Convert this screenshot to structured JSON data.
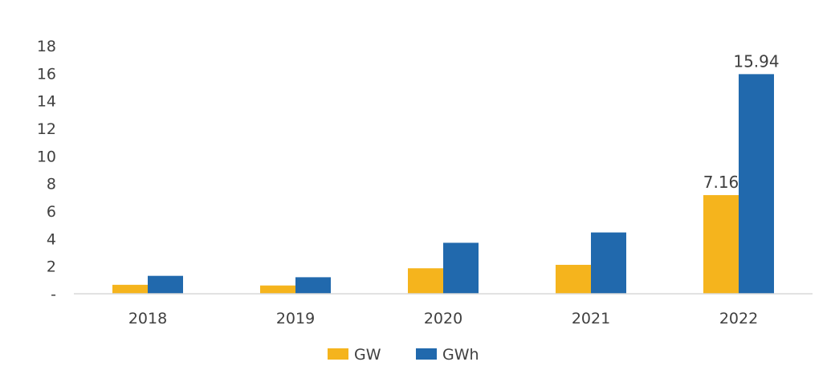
{
  "chart_data": {
    "type": "bar",
    "title": "",
    "xlabel": "",
    "ylabel": "",
    "categories": [
      "2018",
      "2019",
      "2020",
      "2021",
      "2022"
    ],
    "series": [
      {
        "name": "GW",
        "color": "#F5B41D",
        "values": [
          0.65,
          0.6,
          1.85,
          2.1,
          7.16
        ]
      },
      {
        "name": "GWh",
        "color": "#2169AD",
        "values": [
          1.3,
          1.2,
          3.7,
          4.45,
          15.94
        ]
      }
    ],
    "data_labels": [
      {
        "series": "GW",
        "category": "2022",
        "text": "7.16"
      },
      {
        "series": "GWh",
        "category": "2022",
        "text": "15.94"
      }
    ],
    "ylim": [
      0,
      18
    ],
    "yticks": [
      {
        "value": 0,
        "label": "-"
      },
      {
        "value": 2,
        "label": "2"
      },
      {
        "value": 4,
        "label": "4"
      },
      {
        "value": 6,
        "label": "6"
      },
      {
        "value": 8,
        "label": "8"
      },
      {
        "value": 10,
        "label": "10"
      },
      {
        "value": 12,
        "label": "12"
      },
      {
        "value": 14,
        "label": "14"
      },
      {
        "value": 16,
        "label": "16"
      },
      {
        "value": 18,
        "label": "18"
      }
    ],
    "grid": false,
    "legend_position": "bottom-center",
    "axis_color": "#D9D9D9",
    "text_color": "#404040"
  }
}
